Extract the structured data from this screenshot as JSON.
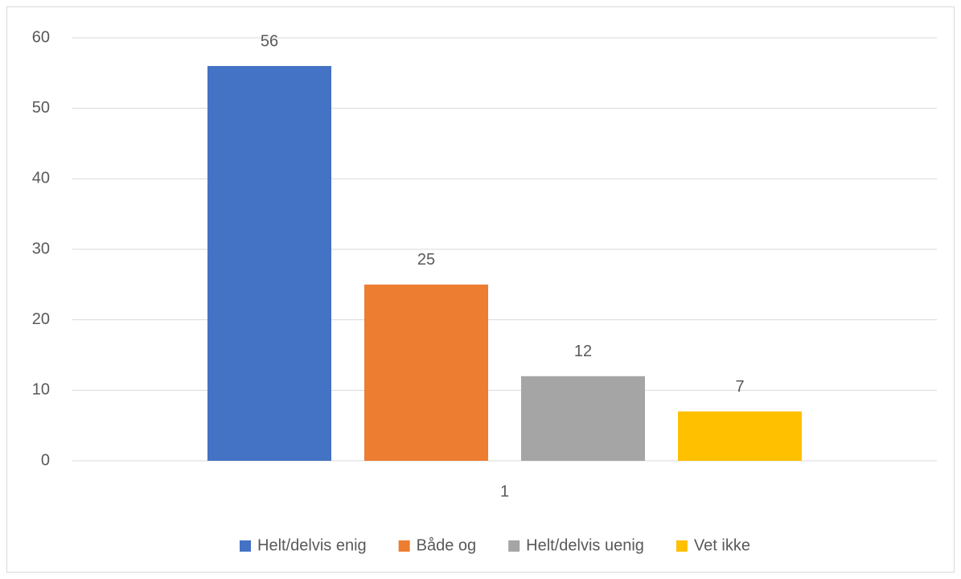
{
  "chart_data": {
    "type": "bar",
    "categories": [
      "1"
    ],
    "series": [
      {
        "name": "Helt/delvis enig",
        "color": "#4472c4",
        "values": [
          56
        ]
      },
      {
        "name": "Både og",
        "color": "#ed7d31",
        "values": [
          25
        ]
      },
      {
        "name": "Helt/delvis uenig",
        "color": "#a5a5a5",
        "values": [
          12
        ]
      },
      {
        "name": "Vet ikke",
        "color": "#ffc000",
        "values": [
          7
        ]
      }
    ],
    "ylim": [
      0,
      60
    ],
    "yticks": [
      0,
      10,
      20,
      30,
      40,
      50,
      60
    ],
    "grid": true,
    "legend": "bottom"
  }
}
